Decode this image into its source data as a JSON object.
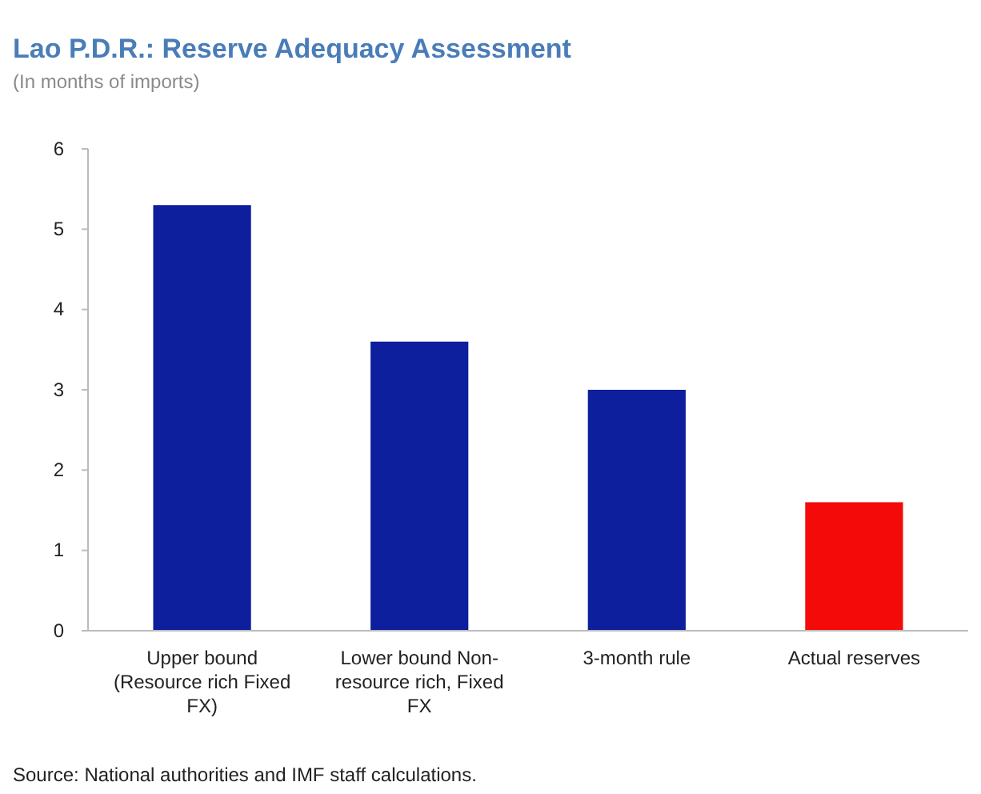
{
  "chart_data": {
    "type": "bar",
    "title": "Lao P.D.R.: Reserve Adequacy Assessment",
    "subtitle": "(In months of imports)",
    "categories": [
      "Upper bound (Resource rich Fixed FX)",
      "Lower bound Non-resource rich, Fixed FX",
      "3-month rule",
      "Actual reserves"
    ],
    "values": [
      5.3,
      3.6,
      3.0,
      1.6
    ],
    "colors": [
      "#0d1f9c",
      "#0d1f9c",
      "#0d1f9c",
      "#f50a0a"
    ],
    "ylim": [
      0,
      6
    ],
    "yticks": [
      0,
      1,
      2,
      3,
      4,
      5,
      6
    ],
    "grid": false,
    "annotations": [
      "Source: National authorities and IMF staff calculations."
    ]
  }
}
